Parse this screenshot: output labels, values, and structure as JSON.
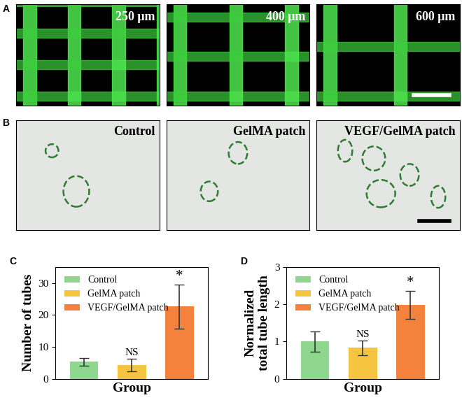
{
  "images": [
    {
      "panel": "A",
      "labels": [
        "250 μm",
        "400 μm",
        "600 μm"
      ]
    },
    {
      "panel": "B",
      "labels": [
        "Control",
        "GelMA patch",
        "VEGF/GelMA patch"
      ]
    }
  ],
  "chart_data": [
    {
      "type": "bar",
      "panel": "C",
      "categories": [
        "Control",
        "GelMA patch",
        "VEGF/GelMA patch"
      ],
      "values": [
        5.3,
        4.3,
        22.6
      ],
      "errors": [
        1.2,
        2.0,
        7.0
      ],
      "significance": [
        null,
        "NS",
        "*"
      ],
      "colors": [
        "#8fd68f",
        "#f5c542",
        "#f5823c"
      ],
      "xlabel": "Group",
      "ylabel": "Number of tubes",
      "ylim": [
        0,
        35
      ],
      "yticks": [
        0,
        10,
        20,
        30
      ],
      "legend": "upper left",
      "tick_labels": "y"
    },
    {
      "type": "bar",
      "panel": "D",
      "categories": [
        "Control",
        "GelMA patch",
        "VEGF/GelMA patch"
      ],
      "values": [
        1.0,
        0.83,
        1.98
      ],
      "errors": [
        0.27,
        0.2,
        0.38
      ],
      "significance": [
        null,
        "NS",
        "*"
      ],
      "colors": [
        "#8fd68f",
        "#f5c542",
        "#f5823c"
      ],
      "xlabel": "Group",
      "ylabel": "Normalized\ntotal tube length",
      "ylim": [
        0,
        3
      ],
      "yticks": [
        0,
        1,
        2,
        3
      ],
      "legend": "upper left",
      "tick_labels": "y"
    }
  ]
}
